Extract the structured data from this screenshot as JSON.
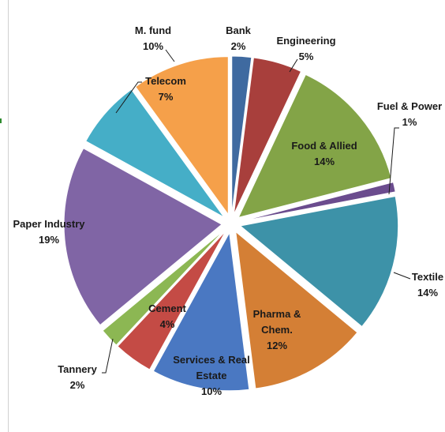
{
  "chart_data": {
    "type": "pie",
    "exploded": true,
    "categories": [
      "Bank",
      "Engineering",
      "Food & Allied",
      "Fuel & Power",
      "Textile",
      "Pharma & Chem.",
      "Services & Real Estate",
      "Cement",
      "Tannery",
      "Paper Industry",
      "Telecom",
      "M. fund"
    ],
    "values": [
      2,
      5,
      14,
      1,
      14,
      12,
      10,
      4,
      2,
      19,
      7,
      10
    ],
    "value_labels": [
      "2%",
      "5%",
      "14%",
      "1%",
      "14%",
      "12%",
      "10%",
      "4%",
      "2%",
      "19%",
      "7%",
      "10%"
    ],
    "label_lines": [
      [
        "Bank",
        "2%"
      ],
      [
        "Engineering",
        "5%"
      ],
      [
        "Food & Allied",
        "14%"
      ],
      [
        "Fuel & Power",
        "1%"
      ],
      [
        "Textile",
        "14%"
      ],
      [
        "Pharma &",
        "Chem.",
        "12%"
      ],
      [
        "Services & Real",
        "Estate",
        "10%"
      ],
      [
        "Cement",
        "4%"
      ],
      [
        "Tannery",
        "2%"
      ],
      [
        "Paper Industry",
        "19%"
      ],
      [
        "Telecom",
        "7%"
      ],
      [
        "M. fund",
        "10%"
      ]
    ],
    "colors": [
      "#3f6aa0",
      "#a83f3c",
      "#83a447",
      "#6b4c8e",
      "#3d92a8",
      "#d47f35",
      "#4a78c2",
      "#c44b45",
      "#8cb753",
      "#8065a5",
      "#45aec7",
      "#f5a04a"
    ],
    "title": "",
    "legend": "none"
  }
}
